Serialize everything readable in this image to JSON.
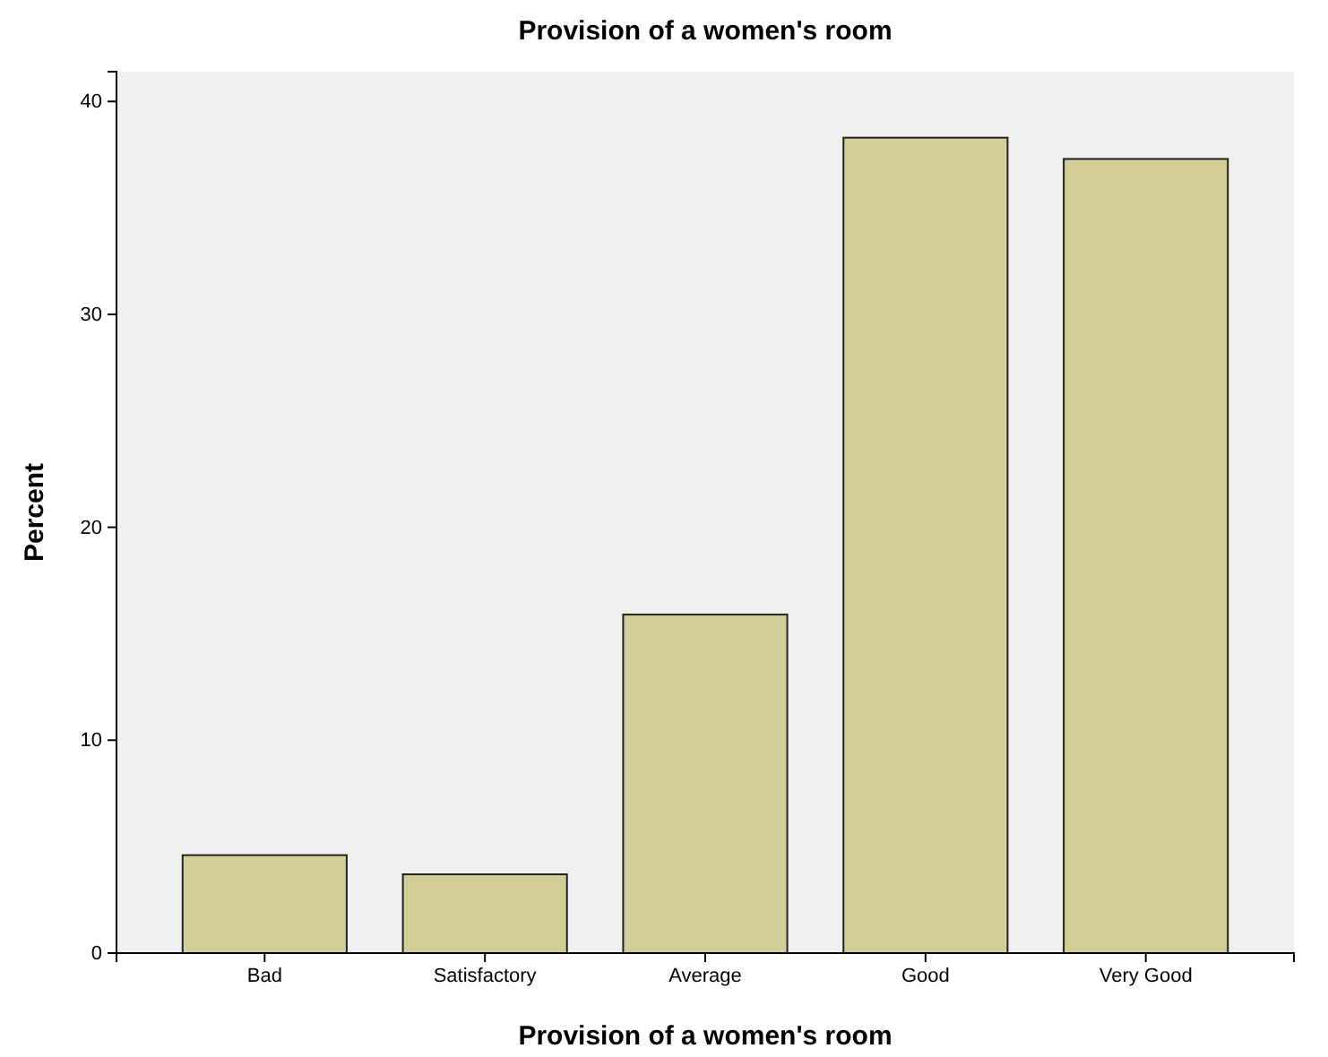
{
  "chart_data": {
    "type": "bar",
    "title": "Provision of a women's room",
    "xlabel": "Provision of a women's room",
    "ylabel": "Percent",
    "categories": [
      "Bad",
      "Satisfactory",
      "Average",
      "Good",
      "Very Good"
    ],
    "values": [
      4.6,
      3.7,
      15.9,
      38.3,
      37.3
    ],
    "color": "#d3ce97",
    "ylim": [
      0,
      41.4
    ],
    "yticks": [
      0,
      10,
      20,
      30,
      40
    ],
    "grid": false,
    "legend": false
  }
}
